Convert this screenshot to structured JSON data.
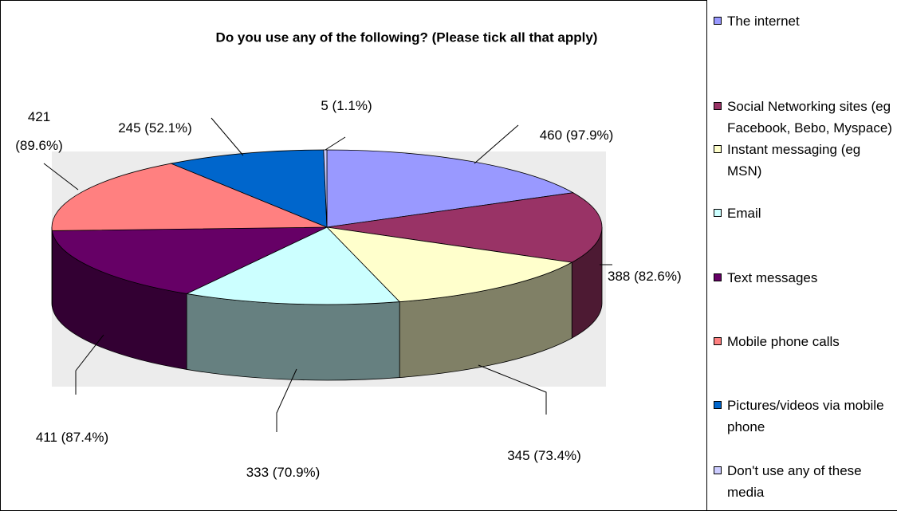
{
  "chart_data": {
    "type": "pie",
    "title": "Do you use any of the following? (Please tick all that apply)",
    "categories": [
      "The internet",
      "Social Networking sites (eg Facebook, Bebo, Myspace)",
      "Instant messaging (eg MSN)",
      "Email",
      "Text messages",
      "Mobile phone calls",
      "Pictures/videos via mobile phone",
      "Don't use any of these media"
    ],
    "values": [
      460,
      388,
      345,
      333,
      411,
      421,
      245,
      5
    ],
    "value_labels": [
      "460 (97.9%)",
      "388 (82.6%)",
      "345 (73.4%)",
      "333 (70.9%)",
      "411 (87.4%)",
      "421 (89.6%)",
      "245 (52.1%)",
      "5 (1.1%)"
    ],
    "colors": [
      "#9999ff",
      "#993366",
      "#ffffcc",
      "#ccffff",
      "#660066",
      "#ff8080",
      "#0066cc",
      "#ccccff"
    ],
    "legend": "right"
  }
}
